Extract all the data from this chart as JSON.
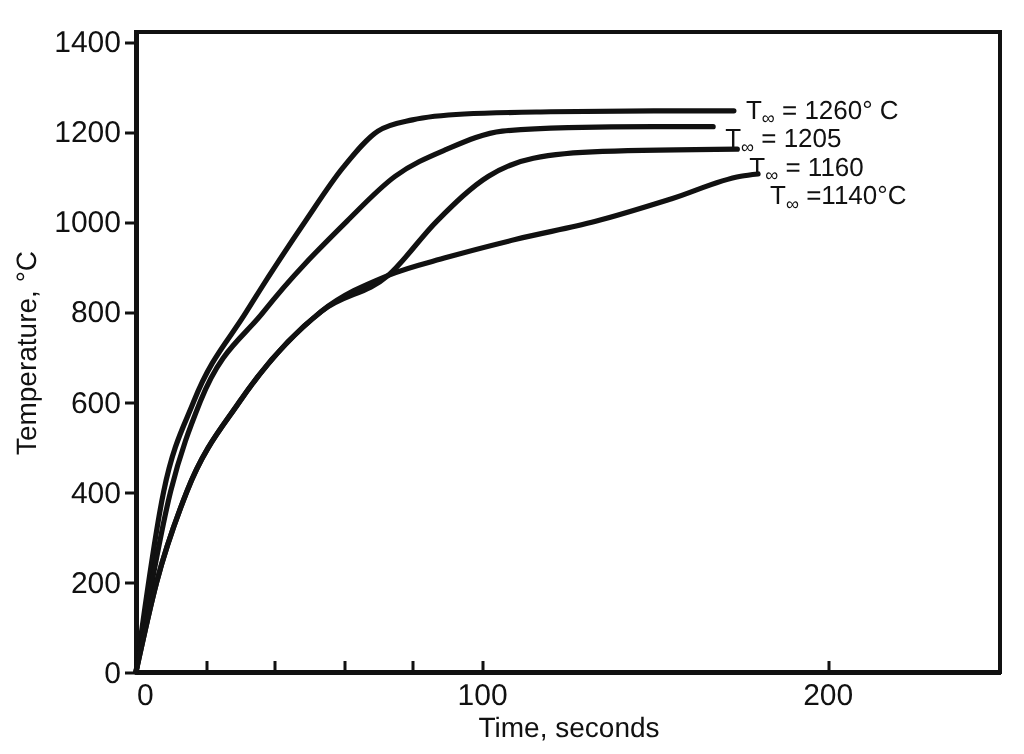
{
  "chart_data": {
    "type": "line",
    "xlabel": "Time, seconds",
    "ylabel": "Temperature, °C",
    "xlim": [
      0,
      250
    ],
    "ylim": [
      0,
      1420
    ],
    "xticks": [
      0,
      {
        "value": 20,
        "label": null
      },
      {
        "value": 40,
        "label": null
      },
      {
        "value": 60,
        "label": null
      },
      {
        "value": 80,
        "label": null
      },
      100,
      200
    ],
    "yticks": [
      0,
      200,
      400,
      600,
      800,
      1000,
      1200,
      1400
    ],
    "grid": false,
    "legend": false,
    "marker": "none",
    "line_style": "solid",
    "series": [
      {
        "name": "T$_{∞}$ = 1260° C",
        "color": "#111111",
        "x": [
          0,
          8,
          16.7,
          32,
          49,
          60,
          70,
          80,
          95,
          120,
          150,
          173
        ],
        "values": [
          0,
          400,
          600,
          800,
          1000,
          1120,
          1200,
          1225,
          1238,
          1243,
          1245,
          1245
        ]
      },
      {
        "name": "T$_{∞}$ = 1205",
        "color": "#111111",
        "x": [
          0,
          10,
          18.6,
          37,
          61,
          75,
          90,
          106,
          125,
          150,
          167
        ],
        "values": [
          0,
          400,
          600,
          800,
          1000,
          1100,
          1160,
          1200,
          1208,
          1210,
          1210
        ]
      },
      {
        "name": "T$_{∞}$ = 1160",
        "color": "#111111",
        "x": [
          0,
          6,
          14.7,
          30,
          53.6,
          73,
          87,
          102,
          115,
          135,
          174
        ],
        "values": [
          0,
          200,
          400,
          600,
          800,
          880,
          1000,
          1100,
          1140,
          1155,
          1160
        ]
      },
      {
        "name": "T$_{∞}$ =1140°C",
        "color": "#111111",
        "x": [
          0,
          6,
          14.7,
          30,
          53.6,
          73,
          90,
          110,
          133,
          155,
          175,
          180
        ],
        "values": [
          0,
          200,
          400,
          600,
          800,
          880,
          920,
          960,
          1000,
          1050,
          1100,
          1105
        ]
      }
    ]
  }
}
